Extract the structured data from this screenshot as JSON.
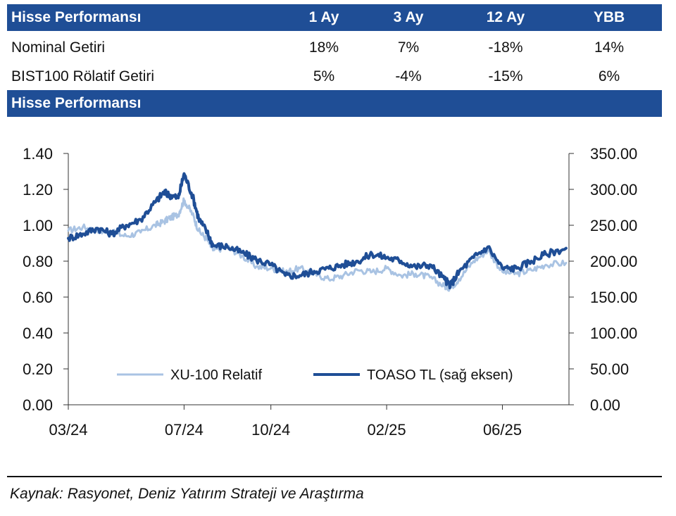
{
  "performance_table": {
    "title": "Hisse Performansı",
    "columns": [
      "1 Ay",
      "3 Ay",
      "12 Ay",
      "YBB"
    ],
    "rows": [
      {
        "label": "Nominal Getiri",
        "values": [
          "18%",
          "7%",
          "-18%",
          "14%"
        ]
      },
      {
        "label": "BIST100 Rölatif Getiri",
        "values": [
          "5%",
          "-4%",
          "-15%",
          "6%"
        ]
      }
    ]
  },
  "chart_section": {
    "title": "Hisse Performansı"
  },
  "colors": {
    "header_band": "#1f4e96",
    "relative_line": "#a9c3e3",
    "price_line": "#1f4e96"
  },
  "chart_data": {
    "type": "line",
    "x_tick_labels": [
      "03/24",
      "07/24",
      "10/24",
      "02/25",
      "06/25"
    ],
    "x_ticks_month_index": [
      0,
      4,
      7,
      11,
      15
    ],
    "x_range_months": [
      0,
      17.3
    ],
    "left_axis": {
      "ylim": [
        0,
        1.4
      ],
      "ticks": [
        "0.00",
        "0.20",
        "0.40",
        "0.60",
        "0.80",
        "1.00",
        "1.20",
        "1.40"
      ]
    },
    "right_axis": {
      "ylim": [
        0,
        350
      ],
      "ticks": [
        "0.00",
        "50.00",
        "100.00",
        "150.00",
        "200.00",
        "250.00",
        "300.00",
        "350.00"
      ]
    },
    "legend": {
      "position": "bottom-center"
    },
    "series": [
      {
        "name": "XU-100 Relatif",
        "axis": "left",
        "x": [
          0,
          0.5,
          1,
          1.5,
          2,
          2.5,
          3,
          3.3,
          3.5,
          3.8,
          4,
          4.3,
          4.5,
          4.8,
          5,
          5.5,
          6,
          6.5,
          7,
          7.5,
          8,
          8.5,
          9,
          9.5,
          10,
          10.5,
          11,
          11.5,
          12,
          12.5,
          13,
          13.2,
          13.5,
          14,
          14.5,
          15,
          15.5,
          16,
          16.5,
          17.2
        ],
        "values": [
          0.97,
          0.99,
          0.97,
          0.96,
          0.94,
          0.96,
          1.0,
          1.02,
          1.04,
          1.06,
          1.14,
          1.06,
          0.97,
          0.92,
          0.86,
          0.88,
          0.83,
          0.77,
          0.76,
          0.74,
          0.76,
          0.73,
          0.7,
          0.72,
          0.75,
          0.74,
          0.76,
          0.72,
          0.73,
          0.71,
          0.66,
          0.65,
          0.7,
          0.8,
          0.86,
          0.74,
          0.73,
          0.75,
          0.78,
          0.79
        ]
      },
      {
        "name": "TOASO TL (sağ eksen)",
        "axis": "right",
        "x": [
          0,
          0.5,
          1,
          1.5,
          2,
          2.5,
          3,
          3.3,
          3.5,
          3.8,
          4,
          4.3,
          4.5,
          4.8,
          5,
          5.5,
          6,
          6.5,
          7,
          7.5,
          8,
          8.5,
          9,
          9.5,
          10,
          10.5,
          11,
          11.5,
          12,
          12.5,
          13,
          13.2,
          13.5,
          14,
          14.5,
          15,
          15.5,
          16,
          16.5,
          17.2
        ],
        "values": [
          232,
          238,
          246,
          238,
          250,
          258,
          282,
          296,
          292,
          288,
          322,
          290,
          260,
          240,
          222,
          220,
          212,
          202,
          195,
          180,
          180,
          186,
          190,
          195,
          200,
          210,
          205,
          200,
          192,
          195,
          175,
          166,
          185,
          205,
          220,
          190,
          190,
          200,
          210,
          218
        ]
      }
    ]
  },
  "source": "Kaynak: Rasyonet, Deniz Yatırım Strateji ve Araştırma"
}
